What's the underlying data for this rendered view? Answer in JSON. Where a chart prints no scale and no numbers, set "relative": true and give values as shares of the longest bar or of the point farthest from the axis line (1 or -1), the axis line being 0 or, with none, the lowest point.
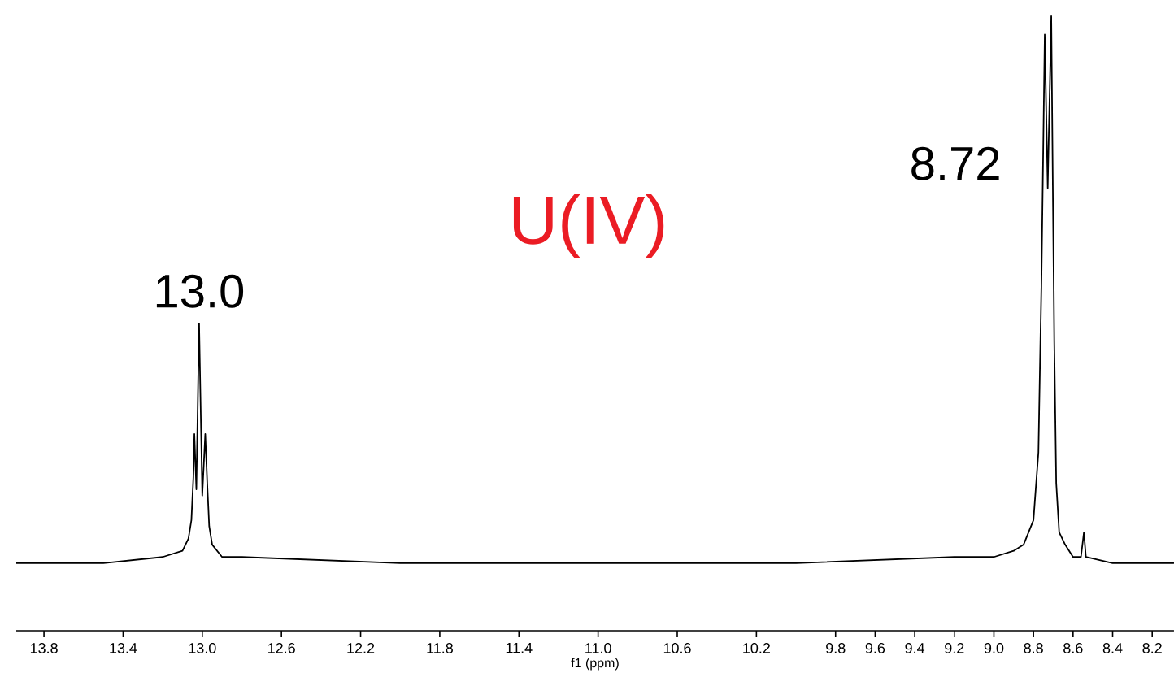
{
  "chart_data": {
    "type": "line",
    "relative": true,
    "xlabel": "f1 (ppm)",
    "xlim": [
      13.94,
      8.09
    ],
    "xticks": [
      13.8,
      13.4,
      {
        "value": 13.0,
        "label": "13.0"
      },
      12.6,
      12.2,
      11.8,
      11.4,
      {
        "value": 11.0,
        "label": "11.0"
      },
      10.6,
      10.2,
      9.8,
      9.6,
      9.4,
      9.2,
      {
        "value": 9.0,
        "label": "9.0"
      },
      8.8,
      8.6,
      8.4,
      8.2
    ],
    "annotations": [
      {
        "text": "13.0",
        "x": 13.016,
        "y": 0.5
      },
      {
        "text": "8.72",
        "x": 8.72,
        "y": 1.0
      },
      "U(IV)"
    ],
    "series": [
      {
        "color": "#000000",
        "x": [
          13.94,
          13.5,
          13.2,
          13.1,
          13.07,
          13.055,
          13.045,
          13.04,
          13.03,
          13.016,
          13.0,
          12.985,
          12.975,
          12.965,
          12.95,
          12.9,
          12.8,
          12.0,
          11.0,
          10.0,
          9.2,
          9.0,
          8.9,
          8.85,
          8.8,
          8.775,
          8.76,
          8.743,
          8.728,
          8.71,
          8.695,
          8.685,
          8.67,
          8.64,
          8.6,
          8.56,
          8.545,
          8.535,
          8.4,
          8.09
        ],
        "values": [
          0.11,
          0.11,
          0.12,
          0.13,
          0.15,
          0.18,
          0.25,
          0.32,
          0.23,
          0.5,
          0.22,
          0.32,
          0.24,
          0.17,
          0.14,
          0.12,
          0.12,
          0.11,
          0.11,
          0.11,
          0.12,
          0.12,
          0.13,
          0.14,
          0.18,
          0.29,
          0.56,
          0.97,
          0.72,
          1.0,
          0.47,
          0.24,
          0.16,
          0.14,
          0.12,
          0.12,
          0.16,
          0.12,
          0.11,
          0.11
        ]
      }
    ]
  }
}
